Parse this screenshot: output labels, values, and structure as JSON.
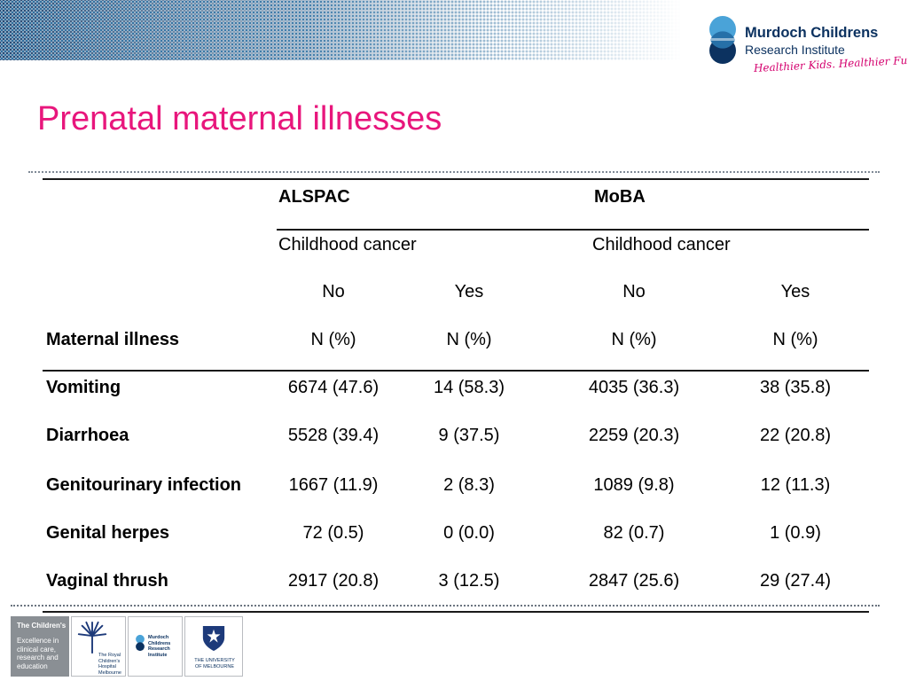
{
  "header": {
    "logo": {
      "name": "Murdoch Childrens",
      "subtitle": "Research Institute",
      "tagline": "Healthier Kids. Healthier Future."
    },
    "colors": {
      "title": "#e8167c",
      "navy": "#0c3260",
      "dots": "#2f6fa0"
    }
  },
  "slide": {
    "title": "Prenatal maternal illnesses"
  },
  "table": {
    "groups": [
      "ALSPAC",
      "MoBA"
    ],
    "subheaders": [
      "Childhood cancer",
      "Childhood cancer"
    ],
    "columns": [
      "No",
      "Yes",
      "No",
      "Yes"
    ],
    "row_header": "Maternal illness",
    "units": [
      "N (%)",
      "N (%)",
      "N (%)",
      "N (%)"
    ],
    "rows": [
      {
        "label": "Vomiting",
        "values": [
          "6674 (47.6)",
          "14 (58.3)",
          "4035 (36.3)",
          "38 (35.8)"
        ]
      },
      {
        "label": "Diarrhoea",
        "values": [
          "5528 (39.4)",
          "9 (37.5)",
          "2259 (20.3)",
          "22 (20.8)"
        ]
      },
      {
        "label": "Genitourinary infection",
        "values": [
          "1667 (11.9)",
          "2 (8.3)",
          "1089 (9.8)",
          "12 (11.3)"
        ]
      },
      {
        "label": "Genital herpes",
        "values": [
          "72 (0.5)",
          "0 (0.0)",
          "82 (0.7)",
          "1 (0.9)"
        ]
      },
      {
        "label": "Vaginal thrush",
        "values": [
          "2917 (20.8)",
          "3 (12.5)",
          "2847 (25.6)",
          "29 (27.4)"
        ]
      }
    ]
  },
  "footer": {
    "childrens": {
      "title": "The Children's",
      "text": "Excellence in clinical care, research and education"
    },
    "rch": "The Royal Children's Hospital Melbourne",
    "mcri": "Murdoch Childrens Research Institute",
    "uom": "THE UNIVERSITY OF MELBOURNE"
  }
}
